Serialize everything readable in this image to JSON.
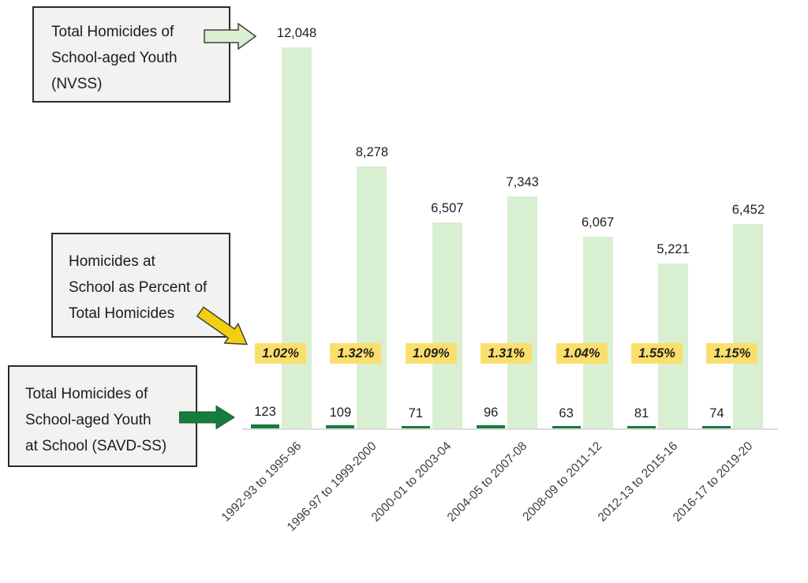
{
  "colors": {
    "background": "#ffffff",
    "bar_total": "#d9efd1",
    "bar_at_school": "#177d3d",
    "percent_highlight": "#fbdf6d",
    "arrow_nvss": "#d9efd1",
    "arrow_percent": "#f4cf11",
    "arrow_savd": "#177d3d",
    "callout_bg": "#f2f2f0",
    "callout_border": "#2b2b2b",
    "axis_line": "#dcdcdc",
    "label_text": "#212121",
    "tick_text": "#3d3d3d"
  },
  "icons": {
    "nvss_arrow": "right-block-arrow",
    "percent_arrow": "down-right-block-arrow",
    "savd_arrow": "right-block-arrow"
  },
  "callouts": {
    "nvss": {
      "lines": [
        "Total Homicides of",
        "School-aged Youth",
        "(NVSS)"
      ]
    },
    "percent": {
      "lines": [
        "Homicides at",
        "School as Percent of",
        "Total Homicides"
      ]
    },
    "savd": {
      "lines": [
        "Total Homicides of",
        "School-aged Youth",
        "at School (SAVD-SS)"
      ]
    }
  },
  "chart_data": {
    "type": "bar",
    "categories": [
      "1992-93 to 1995-96",
      "1996-97 to 1999-2000",
      "2000-01 to 2003-04",
      "2004-05 to 2007-08",
      "2008-09 to 2011-12",
      "2012-13 to 2015-16",
      "2016-17 to 2019-20"
    ],
    "series": [
      {
        "name": "Total Homicides of School-aged Youth (NVSS)",
        "values": [
          12048,
          8278,
          6507,
          7343,
          6067,
          5221,
          6452
        ],
        "labels": [
          "12,048",
          "8,278",
          "6,507",
          "7,343",
          "6,067",
          "5,221",
          "6,452"
        ],
        "color": "#d9efd1"
      },
      {
        "name": "Total Homicides of School-aged Youth at School (SAVD-SS)",
        "values": [
          123,
          109,
          71,
          96,
          63,
          81,
          74
        ],
        "labels": [
          "123",
          "109",
          "71",
          "96",
          "63",
          "81",
          "74"
        ],
        "color": "#177d3d"
      },
      {
        "name": "Homicides at School as Percent of Total Homicides",
        "values": [
          1.02,
          1.32,
          1.09,
          1.31,
          1.04,
          1.55,
          1.15
        ],
        "labels": [
          "1.02%",
          "1.32%",
          "1.09%",
          "1.31%",
          "1.04%",
          "1.55%",
          "1.15%"
        ],
        "color": "#fbdf6d"
      }
    ],
    "ylim": [
      0,
      12048
    ],
    "grid": false,
    "legend_position": "annotation-callouts",
    "value_labels_shown": true
  }
}
